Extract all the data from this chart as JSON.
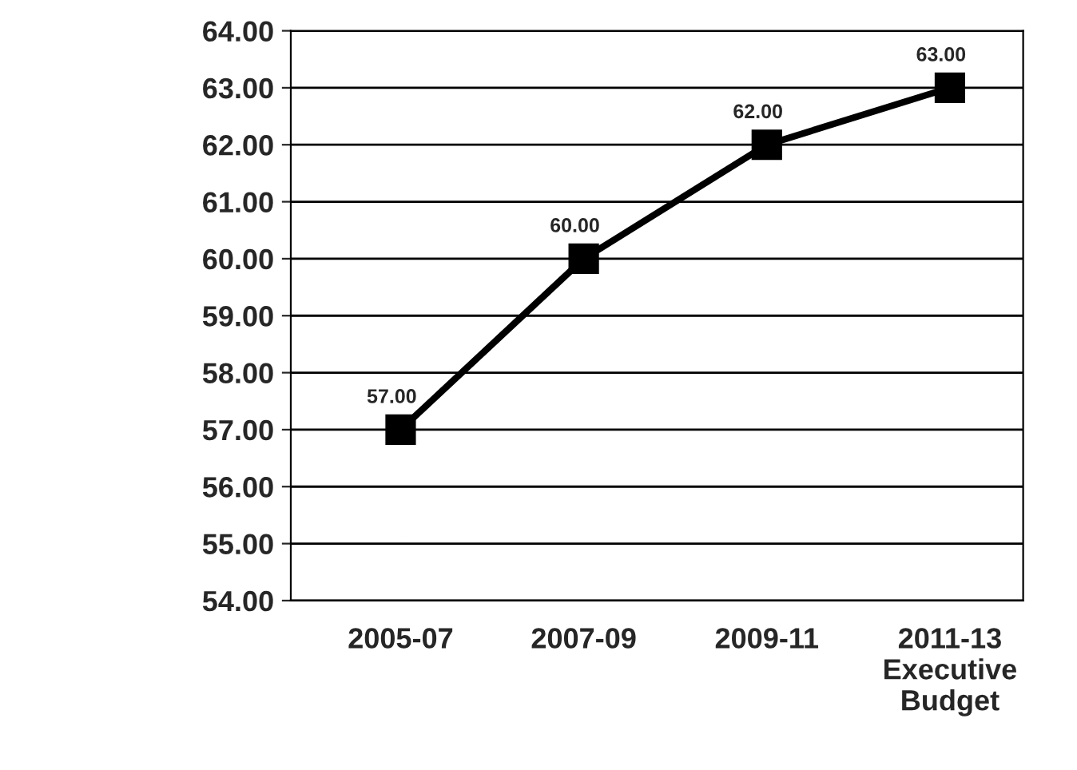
{
  "chart_data": {
    "type": "line",
    "categories": [
      "2005-07",
      "2007-09",
      "2009-11",
      "2011-13\nExecutive\nBudget"
    ],
    "series": [
      {
        "color": "#000000",
        "values": [
          57,
          60,
          62,
          63
        ],
        "value_labels": [
          "57.00",
          "60.00",
          "62.00",
          "63.00"
        ]
      }
    ],
    "ylim": [
      54,
      64
    ],
    "yticks": [
      {
        "value": 54,
        "label": "54.00"
      },
      {
        "value": 55,
        "label": "55.00"
      },
      {
        "value": 56,
        "label": "56.00"
      },
      {
        "value": 57,
        "label": "57.00"
      },
      {
        "value": 58,
        "label": "58.00"
      },
      {
        "value": 59,
        "label": "59.00"
      },
      {
        "value": 60,
        "label": "60.00"
      },
      {
        "value": 61,
        "label": "61.00"
      },
      {
        "value": 62,
        "label": "62.00"
      },
      {
        "value": 63,
        "label": "63.00"
      },
      {
        "value": 64,
        "label": "64.00"
      }
    ],
    "grid": "y",
    "marker": "square",
    "line_style": "solid",
    "legend": false
  }
}
